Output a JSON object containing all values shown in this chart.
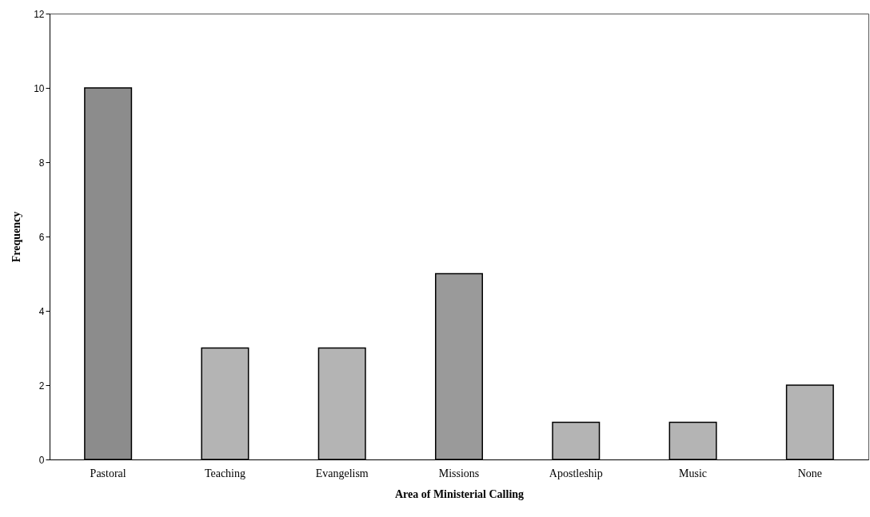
{
  "chart_data": {
    "type": "bar",
    "xlabel": "Area of Ministerial Calling",
    "ylabel": "Frequency",
    "categories": [
      "Pastoral",
      "Teaching",
      "Evangelism",
      "Missions",
      "Apostleship",
      "Music",
      "None"
    ],
    "values": [
      10,
      3,
      3,
      5,
      1,
      1,
      2
    ],
    "colors": [
      "#8c8c8c",
      "#b4b4b4",
      "#b4b4b4",
      "#9a9a9a",
      "#b4b4b4",
      "#b4b4b4",
      "#b4b4b4"
    ],
    "ylim": [
      0,
      12
    ],
    "yticks": [
      0,
      2,
      4,
      6,
      8,
      10,
      12
    ]
  }
}
